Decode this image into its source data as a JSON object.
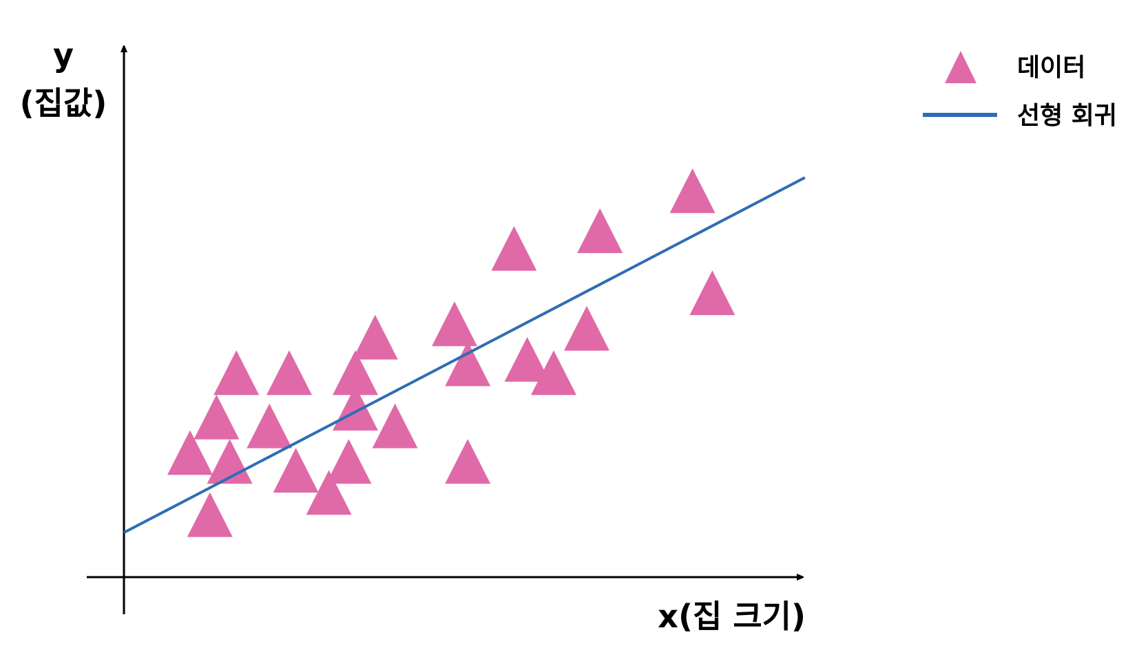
{
  "chart_data": {
    "type": "scatter",
    "title": "",
    "xlabel": "x(집 크기)",
    "ylabel_line1": "y",
    "ylabel_line2": "(집값)",
    "xlim": [
      0,
      100
    ],
    "ylim": [
      0,
      100
    ],
    "grid": false,
    "legend_position": "top-right",
    "series": [
      {
        "name": "데이터",
        "kind": "scatter",
        "marker": "triangle",
        "color": "#e06aa8",
        "points": [
          {
            "x": 13,
            "y": 3
          },
          {
            "x": 10,
            "y": 17
          },
          {
            "x": 14,
            "y": 25
          },
          {
            "x": 16,
            "y": 15
          },
          {
            "x": 17,
            "y": 35
          },
          {
            "x": 25,
            "y": 35
          },
          {
            "x": 22,
            "y": 23
          },
          {
            "x": 26,
            "y": 13
          },
          {
            "x": 31,
            "y": 8
          },
          {
            "x": 34,
            "y": 15
          },
          {
            "x": 35,
            "y": 27
          },
          {
            "x": 35,
            "y": 35
          },
          {
            "x": 38,
            "y": 43
          },
          {
            "x": 41,
            "y": 23
          },
          {
            "x": 50,
            "y": 46
          },
          {
            "x": 52,
            "y": 15
          },
          {
            "x": 52,
            "y": 37
          },
          {
            "x": 61,
            "y": 38
          },
          {
            "x": 59,
            "y": 63
          },
          {
            "x": 65,
            "y": 35
          },
          {
            "x": 70,
            "y": 45
          },
          {
            "x": 72,
            "y": 67
          },
          {
            "x": 86,
            "y": 76
          },
          {
            "x": 89,
            "y": 53
          }
        ]
      },
      {
        "name": "선형 회귀",
        "kind": "line",
        "color": "#2f6db5",
        "points": [
          {
            "x": 0,
            "y": 4
          },
          {
            "x": 103,
            "y": 84
          }
        ]
      }
    ]
  },
  "colors": {
    "axis": "#000000",
    "triangle": "#e06aa8",
    "line": "#2f6db5"
  }
}
